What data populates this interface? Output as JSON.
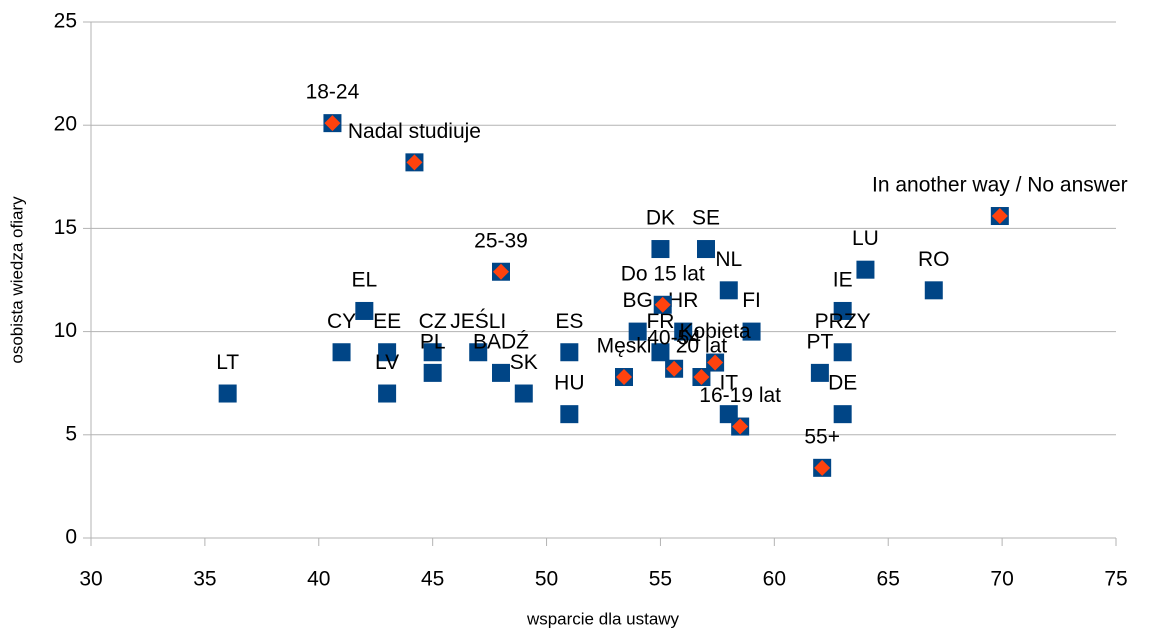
{
  "chart_data": {
    "type": "scatter",
    "x_label": "wsparcie dla ustawy",
    "y_label": "osobista wiedza ofiary",
    "xlim": [
      30,
      75
    ],
    "ylim": [
      0,
      25
    ],
    "xticks": [
      30,
      35,
      40,
      45,
      50,
      55,
      60,
      65,
      70,
      75
    ],
    "yticks": [
      0,
      5,
      10,
      15,
      20,
      25
    ],
    "grid": true,
    "series": [
      {
        "color": "#004586",
        "marker": "square",
        "labels": [
          "LT",
          "CY",
          "EL",
          "EE",
          "LV",
          "CZ",
          "PL",
          "JEŚLI",
          "BADŹ",
          "SK",
          "ES",
          "HU",
          "BG",
          "FR",
          "HR",
          "DK",
          "SE",
          "NL",
          "FI",
          "IT",
          "PT",
          "IE",
          "PRZY",
          "DE",
          "LU",
          "RO"
        ],
        "x": [
          36,
          41,
          42,
          43,
          43,
          45,
          45,
          47,
          48,
          49,
          51,
          51,
          54,
          55,
          56,
          55,
          57,
          58,
          59,
          58,
          62,
          63,
          63,
          63,
          64,
          67
        ],
        "values": [
          7,
          9,
          11,
          9,
          7,
          9,
          8,
          9,
          8,
          7,
          9,
          6,
          10,
          9,
          10,
          14,
          14,
          12,
          10,
          6,
          8,
          11,
          9,
          6,
          13,
          12
        ]
      },
      {
        "color": "#ff420e",
        "marker": "diamond-on-square",
        "labels": [
          "18-24",
          "Nadal studiuje",
          "25-39",
          "Do 15 lat",
          "Męski",
          "40-54",
          "Kobieta",
          "20 lat",
          "16-19 lat",
          "55+",
          "In another way / No answer"
        ],
        "x": [
          40.6,
          44.2,
          48,
          55.1,
          53.4,
          55.6,
          57.4,
          56.8,
          58.5,
          62.1,
          69.9
        ],
        "values": [
          20.1,
          18.2,
          12.9,
          11.3,
          7.8,
          8.2,
          8.5,
          7.8,
          5.4,
          3.4,
          15.6
        ]
      }
    ]
  }
}
